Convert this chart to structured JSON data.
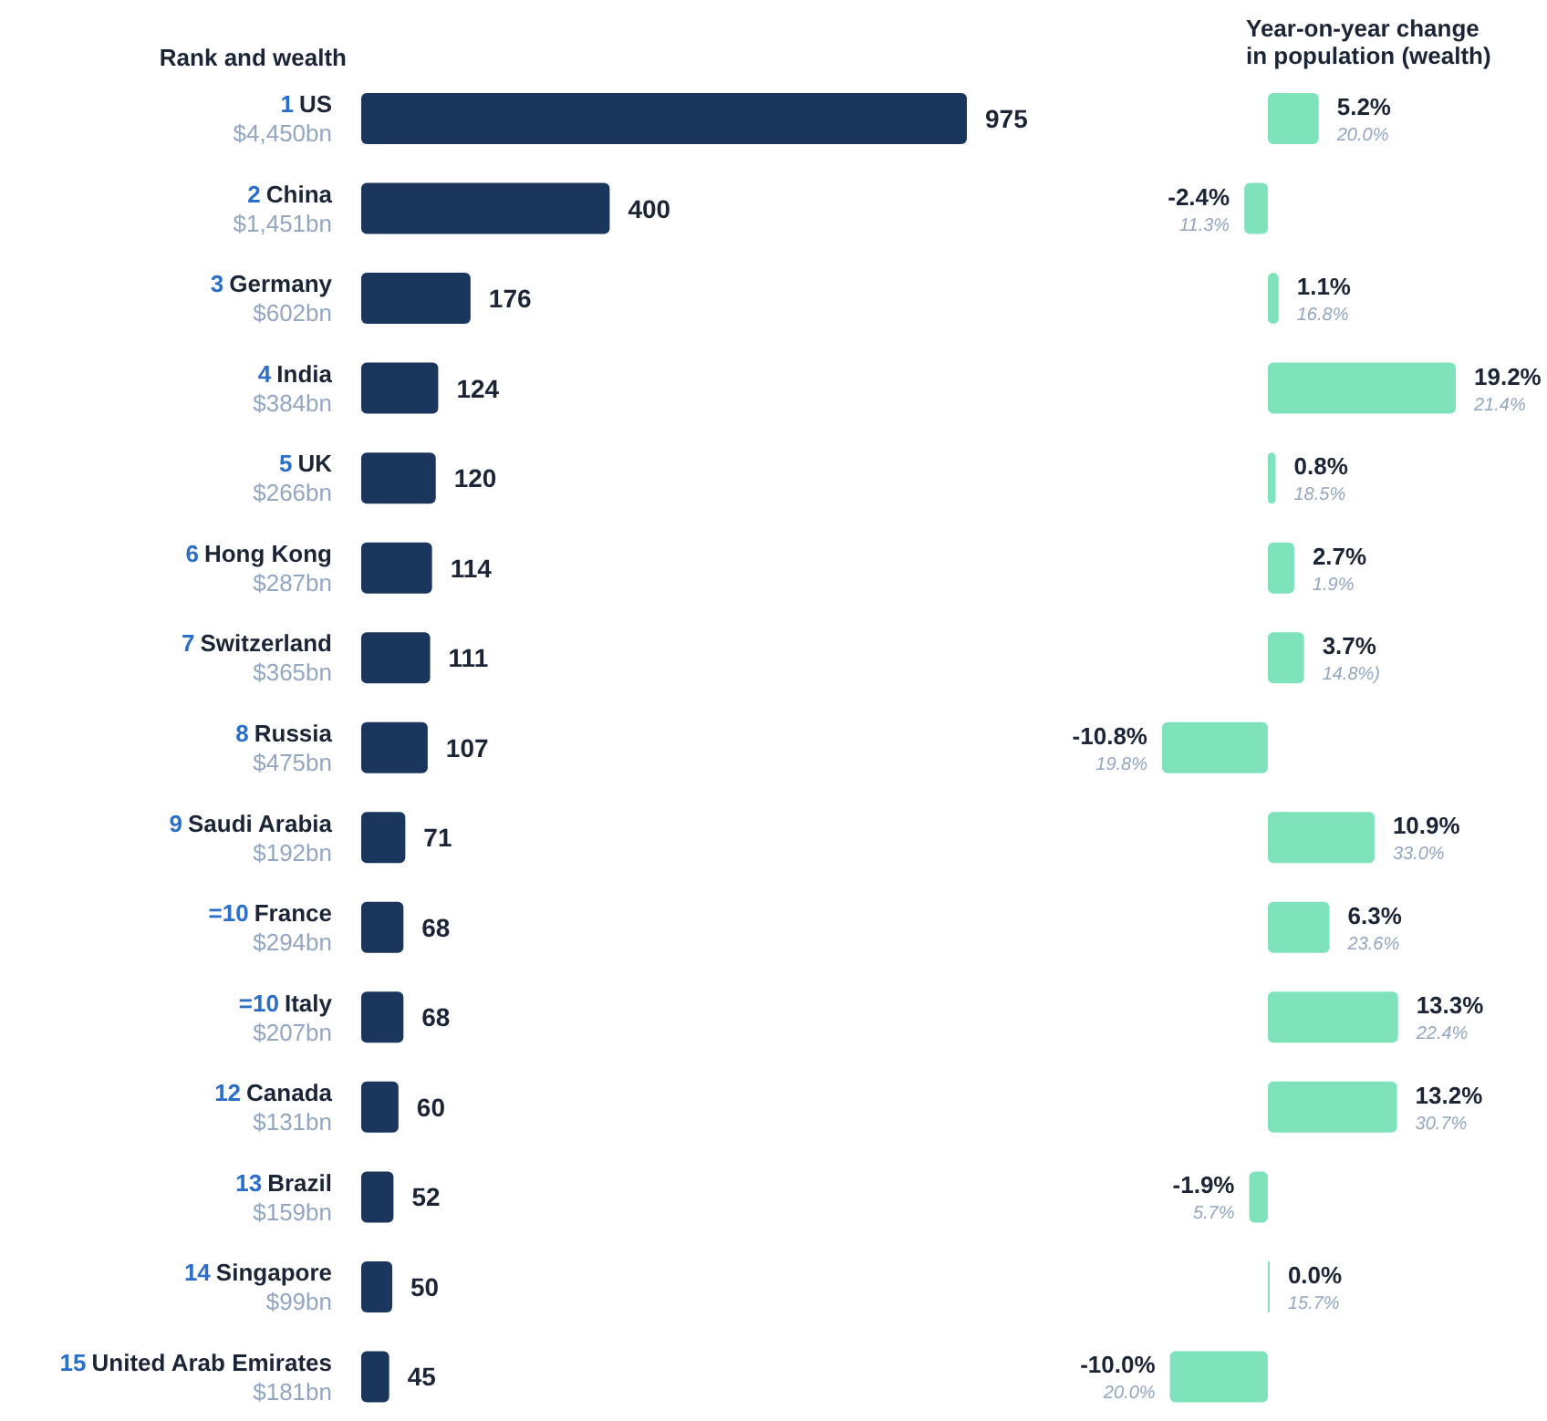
{
  "chart_data": [
    {
      "type": "bar",
      "orientation": "horizontal",
      "title": "Rank and wealth",
      "tick_labels": "y",
      "categories": [
        "1 US\n$4,450bn",
        "2 China\n$1,451bn",
        "3 Germany\n$602bn",
        "4 India\n$384bn",
        "5 UK\n$266bn",
        "6 Hong Kong\n$287bn",
        "7 Switzerland\n$365bn",
        "8 Russia\n$475bn",
        "9 Saudi Arabia\n$192bn",
        "=10 France\n$294bn",
        "=10 Italy\n$207bn",
        "12 Canada\n$131bn",
        "13 Brazil\n$159bn",
        "14 Singapore\n$99bn",
        "15 United Arab Emirates\n$181bn"
      ],
      "values": [
        975,
        400,
        176,
        124,
        120,
        114,
        111,
        107,
        71,
        68,
        68,
        60,
        52,
        50,
        45
      ],
      "color": "#1b365d",
      "data_labels": true
    },
    {
      "type": "bar",
      "orientation": "horizontal",
      "title": "Year-on-year change\nin population (wealth)",
      "tick_labels": false,
      "categories": [
        null,
        null,
        null,
        null,
        null,
        null,
        null,
        null,
        null,
        null,
        null,
        null,
        null,
        null,
        null
      ],
      "values": [
        5.2,
        -2.4,
        1.1,
        19.2,
        0.8,
        2.7,
        3.7,
        -10.8,
        10.9,
        6.3,
        13.3,
        13.2,
        -1.9,
        0.0,
        -10.0
      ],
      "value_labels": [
        "5.2%\n20.0%",
        "-2.4%\n11.3%",
        "1.1%\n16.8%",
        "19.2%\n21.4%",
        "0.8%\n18.5%",
        "2.7%\n1.9%",
        "3.7%\n14.8%)",
        "-10.8%\n19.8%",
        "10.9%\n33.0%",
        "6.3%\n23.6%",
        "13.3%\n22.4%",
        "13.2%\n30.7%",
        "-1.9%\n5.7%",
        "0.0%\n15.7%",
        "-10.0%\n20.0%"
      ],
      "color": "#7ee3bb"
    }
  ]
}
